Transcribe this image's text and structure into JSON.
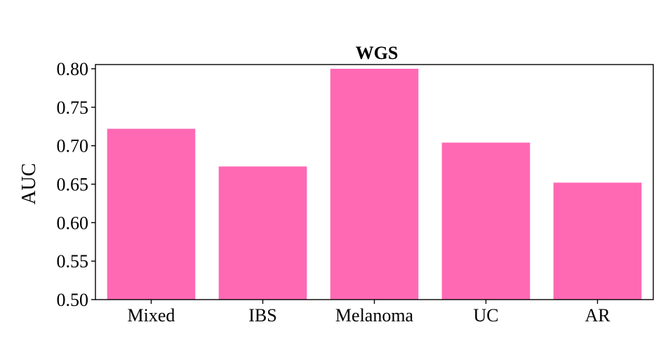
{
  "chart_data": {
    "type": "bar",
    "title": "WGS",
    "xlabel": "",
    "ylabel": "AUC",
    "categories": [
      "Mixed",
      "IBS",
      "Melanoma",
      "UC",
      "AR"
    ],
    "values": [
      0.722,
      0.673,
      0.8,
      0.704,
      0.652
    ],
    "ylim": [
      0.5,
      0.8
    ],
    "yticks": [
      "0.50",
      "0.55",
      "0.60",
      "0.65",
      "0.70",
      "0.75",
      "0.80"
    ],
    "bar_color": "#ff69b4",
    "grid": false,
    "legend": "none"
  }
}
